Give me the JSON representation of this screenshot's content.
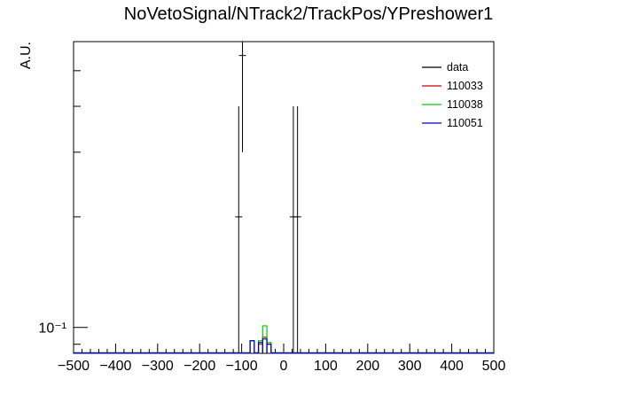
{
  "chart_data": {
    "type": "histogram",
    "title": "NoVetoSignal/NTrack2/TrackPos/YPreshower1",
    "ylabel": "A.U.",
    "xlabel": "",
    "xlim": [
      -500,
      500
    ],
    "ylim": [
      0.085,
      0.6
    ],
    "ylog": true,
    "grid": false,
    "legend_position": "top-right",
    "x_ticks": [
      -500,
      -400,
      -300,
      -200,
      -100,
      0,
      100,
      200,
      300,
      400,
      500
    ],
    "x_tick_labels": [
      "−500",
      "−400",
      "−300",
      "−200",
      "−100",
      "0",
      "100",
      "200",
      "300",
      "400",
      "500"
    ],
    "y_tick_label": "10⁻¹",
    "y_tick_value": 0.1,
    "bin_width": 10,
    "series": [
      {
        "name": "data",
        "color": "#000000",
        "style": "errorbars",
        "points": [
          {
            "x": -107,
            "y": 0.2,
            "ylow": 0.085,
            "yhigh": 0.4
          },
          {
            "x": -98,
            "y": 0.55,
            "ylow": 0.3,
            "yhigh": 0.6
          },
          {
            "x": 23,
            "y": 0.2,
            "ylow": 0.085,
            "yhigh": 0.4
          },
          {
            "x": 33,
            "y": 0.2,
            "ylow": 0.085,
            "yhigh": 0.4
          }
        ]
      },
      {
        "name": "110033",
        "color": "#cc0000",
        "style": "step",
        "bins": [
          {
            "x0": -80,
            "x1": -70,
            "y": 0.092
          },
          {
            "x0": -60,
            "x1": -50,
            "y": 0.09
          },
          {
            "x0": -50,
            "x1": -40,
            "y": 0.094
          },
          {
            "x0": -40,
            "x1": -30,
            "y": 0.09
          }
        ]
      },
      {
        "name": "110038",
        "color": "#00cc00",
        "style": "step",
        "bins": [
          {
            "x0": -80,
            "x1": -70,
            "y": 0.092
          },
          {
            "x0": -60,
            "x1": -50,
            "y": 0.092
          },
          {
            "x0": -50,
            "x1": -40,
            "y": 0.101
          },
          {
            "x0": -40,
            "x1": -30,
            "y": 0.091
          }
        ]
      },
      {
        "name": "110051",
        "color": "#0000cc",
        "style": "step",
        "bins": [
          {
            "x0": -80,
            "x1": -70,
            "y": 0.092
          },
          {
            "x0": -60,
            "x1": -50,
            "y": 0.091
          },
          {
            "x0": -50,
            "x1": -40,
            "y": 0.093
          },
          {
            "x0": -40,
            "x1": -30,
            "y": 0.09
          }
        ]
      }
    ]
  }
}
